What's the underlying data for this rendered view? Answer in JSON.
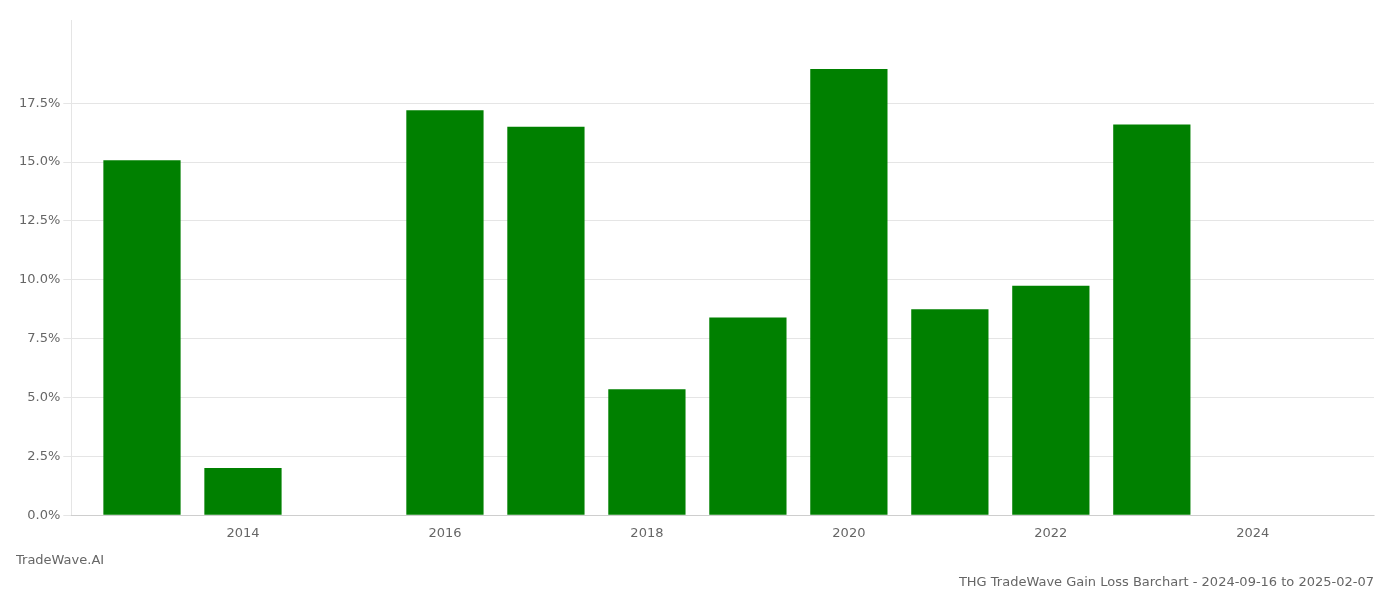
{
  "chart_data": {
    "type": "bar",
    "title": "THG TradeWave Gain Loss Barchart - 2024-09-16 to 2025-02-07",
    "subtitle": "TradeWave.AI",
    "x": [
      2013,
      2014,
      2016,
      2017,
      2018,
      2019,
      2020,
      2021,
      2022,
      2023
    ],
    "values": [
      0.1508,
      0.02,
      0.172,
      0.165,
      0.0535,
      0.084,
      0.1895,
      0.0875,
      0.0975,
      0.166
    ],
    "color": "#008000",
    "xlim": [
      2012.3,
      2025.2
    ],
    "xticks": [
      2014,
      2016,
      2018,
      2020,
      2022,
      2024
    ],
    "ylim": [
      0,
      0.21
    ],
    "yticks": [
      {
        "value": 0.0,
        "label": "0.0%"
      },
      {
        "value": 0.025,
        "label": "2.5%"
      },
      {
        "value": 0.05,
        "label": "5.0%"
      },
      {
        "value": 0.075,
        "label": "7.5%"
      },
      {
        "value": 0.1,
        "label": "10.0%"
      },
      {
        "value": 0.125,
        "label": "12.5%"
      },
      {
        "value": 0.15,
        "label": "15.0%"
      },
      {
        "value": 0.175,
        "label": "17.5%"
      }
    ],
    "grid": "y"
  }
}
